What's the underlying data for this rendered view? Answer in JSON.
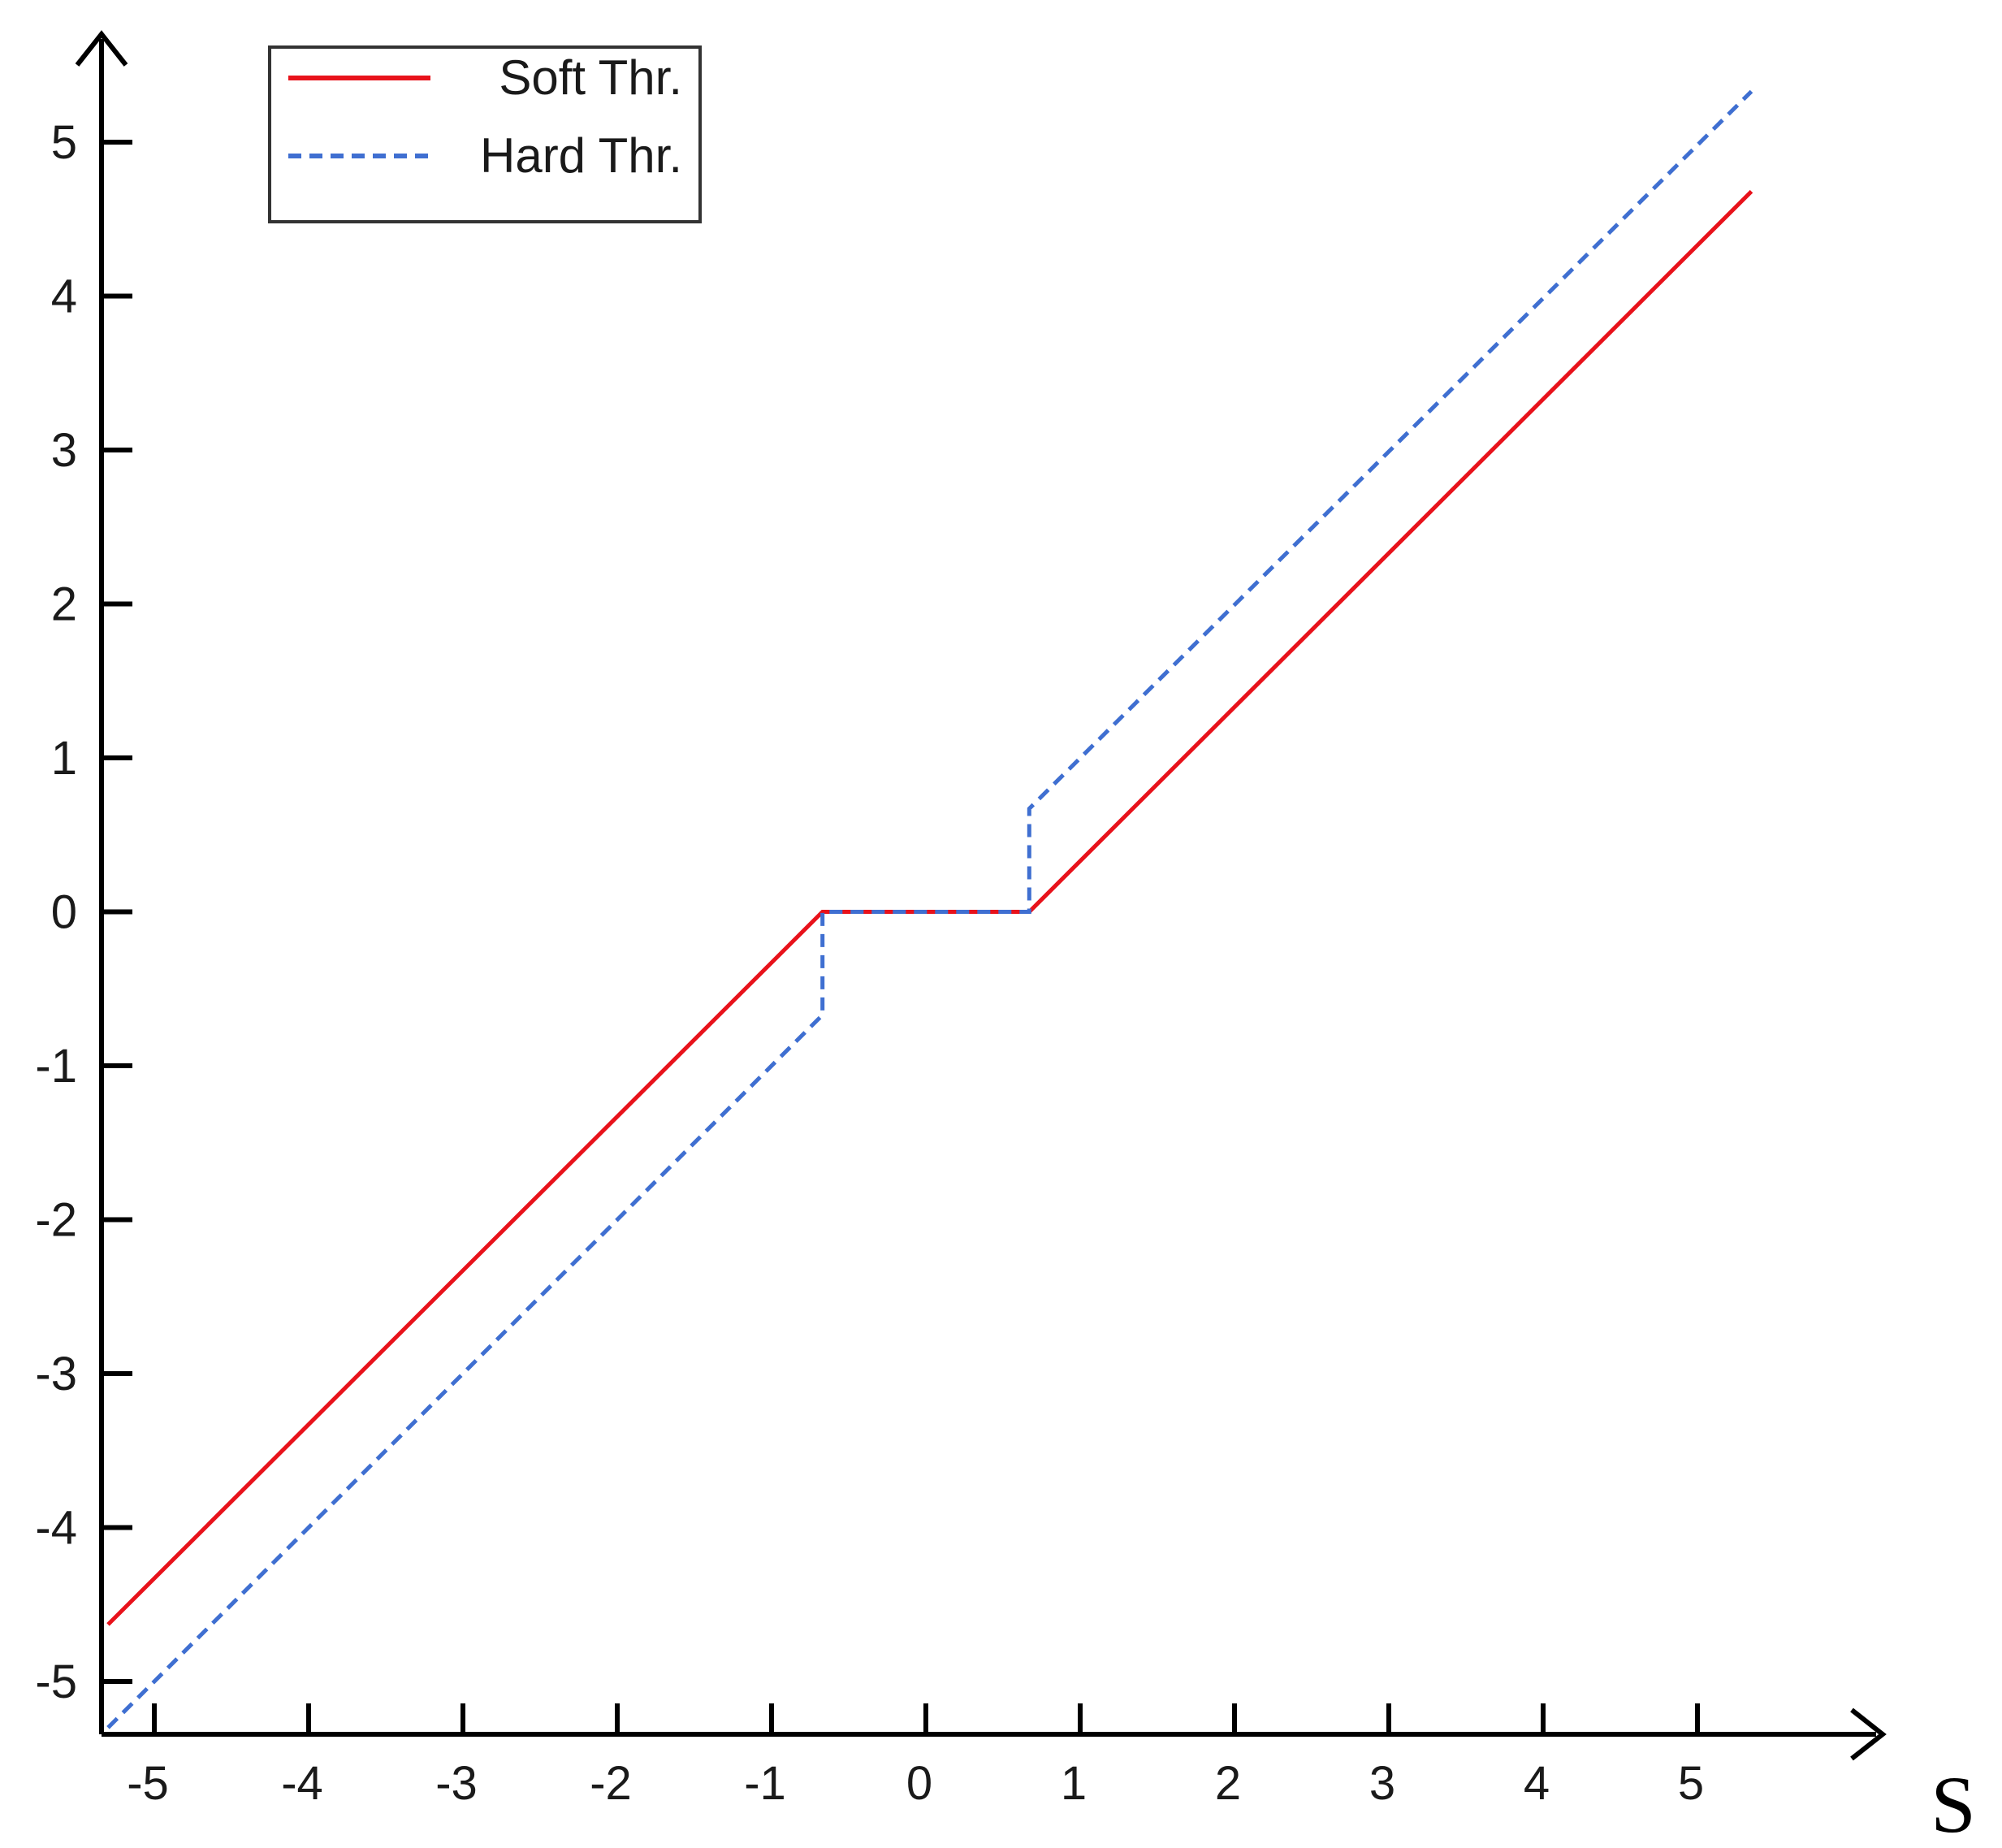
{
  "chart_data": {
    "type": "line",
    "title": "",
    "xlabel": "S",
    "ylabel": "",
    "xlim": [
      -5.3,
      6.1
    ],
    "ylim": [
      -5.35,
      5.8
    ],
    "xticks": [
      -5,
      -4,
      -3,
      -2,
      -1,
      0,
      1,
      2,
      3,
      4,
      5
    ],
    "yticks": [
      -5,
      -4,
      -3,
      -2,
      -1,
      0,
      1,
      2,
      3,
      4,
      5
    ],
    "xtick_labels": [
      "-5",
      "-4",
      "-3",
      "-2",
      "-1",
      "0",
      "1",
      "2",
      "3",
      "4",
      "5"
    ],
    "ytick_labels": [
      "-5",
      "-4",
      "-3",
      "-2",
      "-1",
      "0",
      "1",
      "2",
      "3",
      "4",
      "5"
    ],
    "legend_position": "top-left",
    "grid": false,
    "series": [
      {
        "name": "Soft Thr.",
        "color": "#e8121b",
        "style": "solid",
        "x": [
          -5.3,
          -0.67,
          0.67,
          5.35
        ],
        "y": [
          -4.63,
          0,
          0,
          4.68
        ]
      },
      {
        "name": "Hard Thr.",
        "color": "#3f6fd1",
        "style": "dashed",
        "x": [
          -5.3,
          -0.67,
          -0.67,
          0.67,
          0.67,
          5.35
        ],
        "y": [
          -5.3,
          -0.67,
          0,
          0,
          0.67,
          5.33
        ]
      }
    ]
  }
}
